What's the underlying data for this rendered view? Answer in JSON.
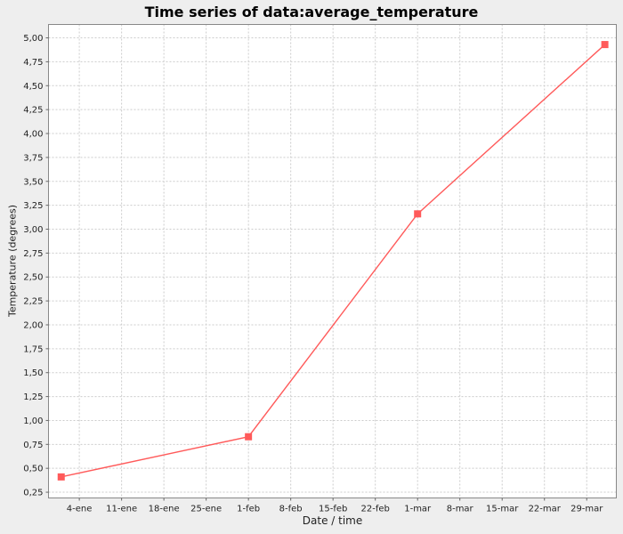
{
  "chart_data": {
    "type": "line",
    "title": "Time series of data:average_temperature",
    "xlabel": "Date / time",
    "ylabel": "Temperature (degrees)",
    "legend": "none",
    "grid": "dashed",
    "series": [
      {
        "name": "average_temperature",
        "color": "#ff5a5a",
        "marker": "square",
        "marker_size": 8,
        "points": [
          {
            "date": "1-ene",
            "x_day": 0,
            "y": 0.41
          },
          {
            "date": "1-feb",
            "x_day": 31,
            "y": 0.83
          },
          {
            "date": "1-mar",
            "x_day": 59,
            "y": 3.16
          },
          {
            "date": "1-abr",
            "x_day": 90,
            "y": 4.93
          }
        ]
      }
    ],
    "x_axis": {
      "range_days": [
        -2.1,
        91.9
      ],
      "ticks": [
        {
          "label": "4-ene",
          "day": 3
        },
        {
          "label": "11-ene",
          "day": 10
        },
        {
          "label": "18-ene",
          "day": 17
        },
        {
          "label": "25-ene",
          "day": 24
        },
        {
          "label": "1-feb",
          "day": 31
        },
        {
          "label": "8-feb",
          "day": 38
        },
        {
          "label": "15-feb",
          "day": 45
        },
        {
          "label": "22-feb",
          "day": 52
        },
        {
          "label": "1-mar",
          "day": 59
        },
        {
          "label": "8-mar",
          "day": 66
        },
        {
          "label": "15-mar",
          "day": 73
        },
        {
          "label": "22-mar",
          "day": 80
        },
        {
          "label": "29-mar",
          "day": 87
        }
      ]
    },
    "y_axis": {
      "range": [
        0.19,
        5.14
      ],
      "ticks": [
        {
          "label": "0,25",
          "value": 0.25
        },
        {
          "label": "0,50",
          "value": 0.5
        },
        {
          "label": "0,75",
          "value": 0.75
        },
        {
          "label": "1,00",
          "value": 1.0
        },
        {
          "label": "1,25",
          "value": 1.25
        },
        {
          "label": "1,50",
          "value": 1.5
        },
        {
          "label": "1,75",
          "value": 1.75
        },
        {
          "label": "2,00",
          "value": 2.0
        },
        {
          "label": "2,25",
          "value": 2.25
        },
        {
          "label": "2,50",
          "value": 2.5
        },
        {
          "label": "2,75",
          "value": 2.75
        },
        {
          "label": "3,00",
          "value": 3.0
        },
        {
          "label": "3,25",
          "value": 3.25
        },
        {
          "label": "3,50",
          "value": 3.5
        },
        {
          "label": "3,75",
          "value": 3.75
        },
        {
          "label": "4,00",
          "value": 4.0
        },
        {
          "label": "4,25",
          "value": 4.25
        },
        {
          "label": "4,50",
          "value": 4.5
        },
        {
          "label": "4,75",
          "value": 4.75
        },
        {
          "label": "5,00",
          "value": 5.0
        }
      ]
    }
  },
  "colors": {
    "figure_bg": "#eeeeee",
    "plot_bg": "#ffffff",
    "gridline": "#cccccc",
    "axis_border": "#888888",
    "tick_mark": "#666666",
    "tick_text": "#222222",
    "title_text": "#000000",
    "series": "#ff5a5a"
  }
}
